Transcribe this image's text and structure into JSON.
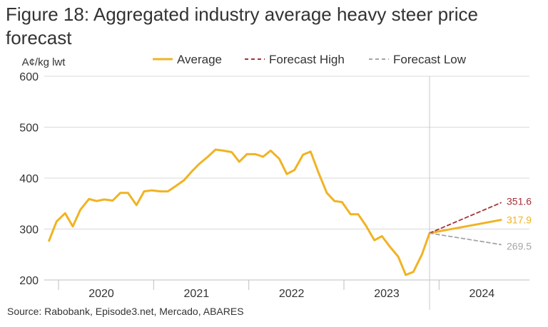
{
  "title": "Figure 18: Aggregated industry average heavy steer price forecast",
  "source": "Source: Rabobank, Episode3.net, Mercado, ABARES",
  "colors": {
    "average": "#f0b323",
    "forecast_high": "#a6323a",
    "forecast_low": "#a6a6a6",
    "grid": "#d9d9d9",
    "text": "#333333"
  },
  "chart_data": {
    "type": "line",
    "title": "Figure 18: Aggregated industry average heavy steer price forecast",
    "ylabel": "A¢/kg lwt",
    "xlabel": "",
    "ylim": [
      200,
      600
    ],
    "yticks": [
      200,
      300,
      400,
      500,
      600
    ],
    "grid": true,
    "legend_position": "top",
    "x_tick_labels": [
      "2020",
      "2021",
      "2022",
      "2023",
      "2024"
    ],
    "x_range": [
      2019.7,
      2024.8
    ],
    "forecast_start": 2023.75,
    "series": [
      {
        "name": "Average",
        "color": "#f0b323",
        "style": "solid",
        "x": [
          2019.75,
          2019.83,
          2019.92,
          2020.0,
          2020.08,
          2020.17,
          2020.25,
          2020.33,
          2020.42,
          2020.5,
          2020.58,
          2020.67,
          2020.75,
          2020.83,
          2020.92,
          2021.0,
          2021.08,
          2021.17,
          2021.25,
          2021.33,
          2021.42,
          2021.5,
          2021.58,
          2021.67,
          2021.75,
          2021.83,
          2021.92,
          2022.0,
          2022.08,
          2022.17,
          2022.25,
          2022.33,
          2022.42,
          2022.5,
          2022.58,
          2022.67,
          2022.75,
          2022.83,
          2022.92,
          2023.0,
          2023.08,
          2023.17,
          2023.25,
          2023.33,
          2023.42,
          2023.5,
          2023.58,
          2023.67,
          2023.75,
          2024.5
        ],
        "values": [
          277,
          315,
          331,
          305,
          338,
          359,
          355,
          358,
          356,
          371,
          371,
          347,
          374,
          376,
          374,
          374,
          384,
          396,
          413,
          428,
          442,
          456,
          454,
          451,
          432,
          447,
          447,
          442,
          454,
          438,
          408,
          416,
          446,
          452,
          412,
          371,
          355,
          353,
          329,
          329,
          307,
          278,
          286,
          266,
          246,
          210,
          216,
          250,
          292,
          317.9
        ]
      },
      {
        "name": "Forecast High",
        "color": "#a6323a",
        "style": "dashed",
        "x": [
          2023.75,
          2024.5
        ],
        "values": [
          292,
          351.6
        ]
      },
      {
        "name": "Forecast Low",
        "color": "#a6a6a6",
        "style": "dashed",
        "x": [
          2023.75,
          2024.5
        ],
        "values": [
          292,
          269.5
        ]
      }
    ],
    "end_labels": [
      {
        "text": "351.6",
        "value": 351.6,
        "color": "#a6323a"
      },
      {
        "text": "317.9",
        "value": 317.9,
        "color": "#f0b323"
      },
      {
        "text": "269.5",
        "value": 269.5,
        "color": "#a6a6a6"
      }
    ]
  }
}
